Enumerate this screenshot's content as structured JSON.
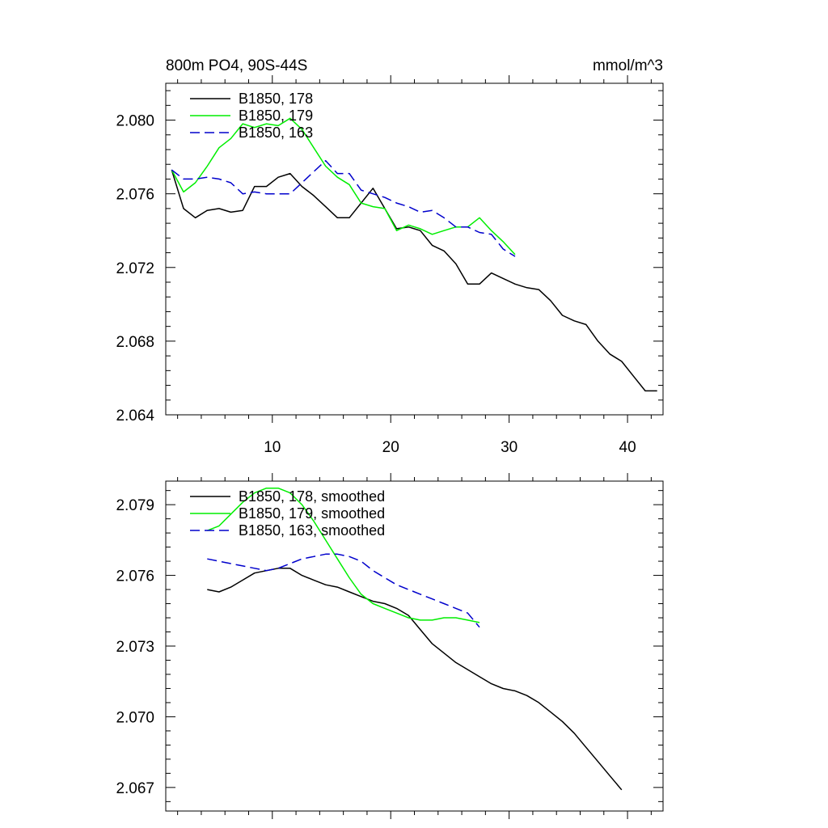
{
  "chart_data": [
    {
      "type": "line",
      "title": "800m PO4, 90S-44S",
      "units": "mmol/m^3",
      "xlabel": "",
      "ylabel": "",
      "xlim": [
        1,
        43
      ],
      "ylim": [
        2.064,
        2.082
      ],
      "x_ticks": [
        10,
        20,
        30,
        40
      ],
      "y_ticks": [
        2.064,
        2.068,
        2.072,
        2.076,
        2.08
      ],
      "y_tick_labels": [
        "2.064",
        "2.068",
        "2.072",
        "2.076",
        "2.080"
      ],
      "legend_position": "top-left",
      "grid": false,
      "series": [
        {
          "name": "B1850, 178",
          "color": "#000000",
          "dash": "solid",
          "x": [
            1.5,
            2.5,
            3.5,
            4.5,
            5.5,
            6.5,
            7.5,
            8.5,
            9.5,
            10.5,
            11.5,
            12.5,
            13.5,
            14.5,
            15.5,
            16.5,
            17.5,
            18.5,
            19.5,
            20.5,
            21.5,
            22.5,
            23.5,
            24.5,
            25.5,
            26.5,
            27.5,
            28.5,
            29.5,
            30.5,
            31.5,
            32.5,
            33.5,
            34.5,
            35.5,
            36.5,
            37.5,
            38.5,
            39.5,
            40.5,
            41.5,
            42.5
          ],
          "y": [
            2.0773,
            2.0752,
            2.0747,
            2.0751,
            2.0752,
            2.075,
            2.0751,
            2.0764,
            2.0764,
            2.0769,
            2.0771,
            2.0764,
            2.0759,
            2.0753,
            2.0747,
            2.0747,
            2.0755,
            2.0763,
            2.0752,
            2.0741,
            2.0742,
            2.074,
            2.0732,
            2.0729,
            2.0722,
            2.0711,
            2.0711,
            2.0717,
            2.0714,
            2.0711,
            2.0709,
            2.0708,
            2.0702,
            2.0694,
            2.0691,
            2.0689,
            2.068,
            2.0673,
            2.0669,
            2.0661,
            2.0653,
            2.0653
          ]
        },
        {
          "name": "B1850, 179",
          "color": "#00ee00",
          "dash": "solid",
          "x": [
            1.5,
            2.5,
            3.5,
            4.5,
            5.5,
            6.5,
            7.5,
            8.5,
            9.5,
            10.5,
            11.5,
            12.5,
            13.5,
            14.5,
            15.5,
            16.5,
            17.5,
            18.5,
            19.5,
            20.5,
            21.5,
            22.5,
            23.5,
            24.5,
            25.5,
            26.5,
            27.5,
            28.5,
            29.5,
            30.5
          ],
          "y": [
            2.0773,
            2.0761,
            2.0766,
            2.0775,
            2.0785,
            2.079,
            2.0798,
            2.0796,
            2.0798,
            2.0797,
            2.0801,
            2.0795,
            2.0785,
            2.0775,
            2.0769,
            2.0765,
            2.0755,
            2.0753,
            2.0752,
            2.074,
            2.0743,
            2.0741,
            2.0738,
            2.074,
            2.0742,
            2.0742,
            2.0747,
            2.074,
            2.0734,
            2.0727
          ]
        },
        {
          "name": "B1850, 163",
          "color": "#0000cc",
          "dash": "dashed",
          "x": [
            1.5,
            2.5,
            3.5,
            4.5,
            5.5,
            6.5,
            7.5,
            8.5,
            9.5,
            10.5,
            11.5,
            12.5,
            13.5,
            14.5,
            15.5,
            16.5,
            17.5,
            18.5,
            19.5,
            20.5,
            21.5,
            22.5,
            23.5,
            24.5,
            25.5,
            26.5,
            27.5,
            28.5,
            29.5,
            30.5
          ],
          "y": [
            2.0773,
            2.0768,
            2.0768,
            2.0769,
            2.0768,
            2.0766,
            2.076,
            2.0761,
            2.076,
            2.076,
            2.076,
            2.0766,
            2.0772,
            2.0778,
            2.0771,
            2.0771,
            2.0762,
            2.076,
            2.0758,
            2.0755,
            2.0753,
            2.075,
            2.0751,
            2.0747,
            2.0742,
            2.0742,
            2.0739,
            2.0738,
            2.073,
            2.0726
          ]
        }
      ]
    },
    {
      "type": "line",
      "title": "",
      "xlabel": "",
      "ylabel": "",
      "xlim": [
        1,
        43
      ],
      "ylim": [
        2.066,
        2.08
      ],
      "x_ticks": [
        10,
        20,
        30,
        40
      ],
      "y_ticks": [
        2.067,
        2.07,
        2.073,
        2.076,
        2.079
      ],
      "y_tick_labels": [
        "2.067",
        "2.070",
        "2.073",
        "2.076",
        "2.079"
      ],
      "legend_position": "top-left",
      "grid": false,
      "series": [
        {
          "name": "B1850, 178, smoothed",
          "color": "#000000",
          "dash": "solid",
          "x": [
            4.5,
            5.5,
            6.5,
            7.5,
            8.5,
            9.5,
            10.5,
            11.5,
            12.5,
            13.5,
            14.5,
            15.5,
            16.5,
            17.5,
            18.5,
            19.5,
            20.5,
            21.5,
            22.5,
            23.5,
            24.5,
            25.5,
            26.5,
            27.5,
            28.5,
            29.5,
            30.5,
            31.5,
            32.5,
            33.5,
            34.5,
            35.5,
            36.5,
            37.5,
            38.5,
            39.5
          ],
          "y": [
            2.0754,
            2.0753,
            2.0755,
            2.0758,
            2.0761,
            2.0762,
            2.0763,
            2.0763,
            2.076,
            2.0758,
            2.0756,
            2.0755,
            2.0753,
            2.0751,
            2.0749,
            2.0748,
            2.0746,
            2.0743,
            2.0737,
            2.0731,
            2.0727,
            2.0723,
            2.072,
            2.0717,
            2.0714,
            2.0712,
            2.0711,
            2.0709,
            2.0706,
            2.0702,
            2.0698,
            2.0693,
            2.0687,
            2.0681,
            2.0675,
            2.0669
          ]
        },
        {
          "name": "B1850, 179, smoothed",
          "color": "#00ee00",
          "dash": "solid",
          "x": [
            4.5,
            5.5,
            6.5,
            7.5,
            8.5,
            9.5,
            10.5,
            11.5,
            12.5,
            13.5,
            14.5,
            15.5,
            16.5,
            17.5,
            18.5,
            19.5,
            20.5,
            21.5,
            22.5,
            23.5,
            24.5,
            25.5,
            26.5,
            27.5
          ],
          "y": [
            2.0779,
            2.0781,
            2.0786,
            2.0791,
            2.0795,
            2.0797,
            2.0797,
            2.0795,
            2.079,
            2.0783,
            2.0775,
            2.0767,
            2.0759,
            2.0752,
            2.0748,
            2.0746,
            2.0744,
            2.0742,
            2.0741,
            2.0741,
            2.0742,
            2.0742,
            2.0741,
            2.074
          ]
        },
        {
          "name": "B1850, 163, smoothed",
          "color": "#0000cc",
          "dash": "dashed",
          "x": [
            4.5,
            5.5,
            6.5,
            7.5,
            8.5,
            9.5,
            10.5,
            11.5,
            12.5,
            13.5,
            14.5,
            15.5,
            16.5,
            17.5,
            18.5,
            19.5,
            20.5,
            21.5,
            22.5,
            23.5,
            24.5,
            25.5,
            26.5,
            27.5
          ],
          "y": [
            2.0767,
            2.0766,
            2.0765,
            2.0764,
            2.0763,
            2.0762,
            2.0763,
            2.0765,
            2.0767,
            2.0768,
            2.0769,
            2.0769,
            2.0768,
            2.0766,
            2.0762,
            2.0759,
            2.0756,
            2.0754,
            2.0752,
            2.075,
            2.0748,
            2.0746,
            2.0744,
            2.0738
          ]
        }
      ]
    }
  ]
}
